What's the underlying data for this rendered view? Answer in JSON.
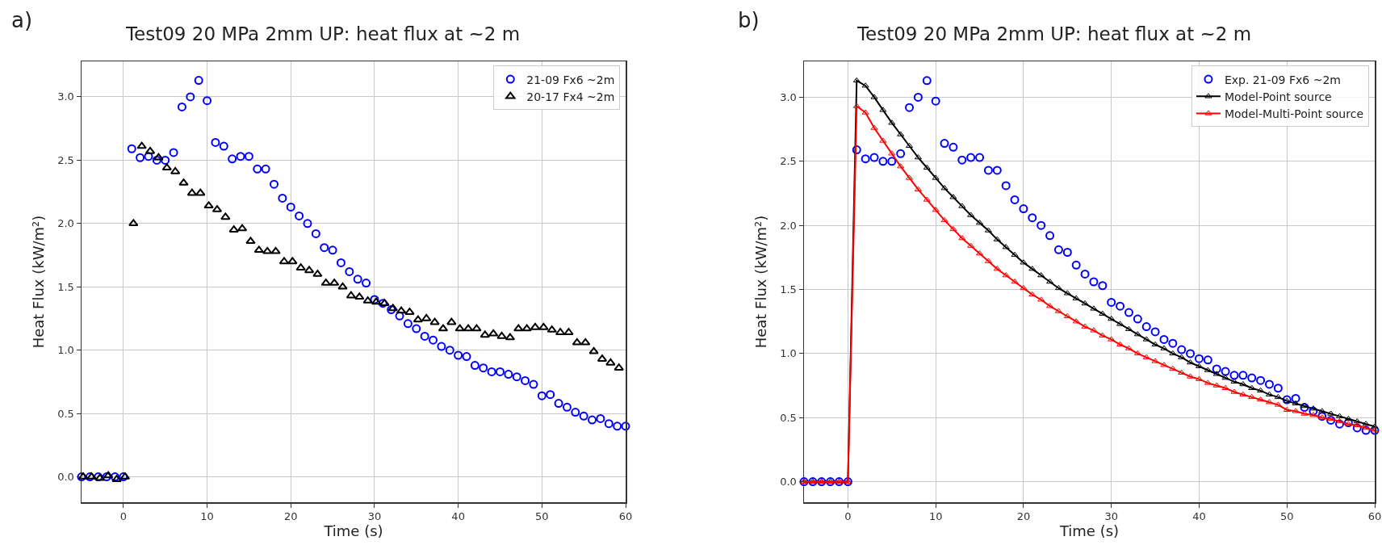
{
  "chart_data": [
    {
      "type": "scatter",
      "title": "Test09 20 MPa 2mm UP: heat flux at ~2 m",
      "xlabel": "Time (s)",
      "ylabel": "Heat Flux (kW/m²)",
      "annotations": [
        "a)"
      ],
      "xlim": [
        -5,
        60
      ],
      "ylim": [
        -0.2,
        3.28
      ],
      "xticks": [
        0,
        10,
        20,
        30,
        40,
        50,
        60
      ],
      "yticks": [
        {
          "value": 0,
          "label": "0.0"
        },
        {
          "value": 0.5,
          "label": "0.5"
        },
        {
          "value": 1,
          "label": "1.0"
        },
        {
          "value": 1.5,
          "label": "1.5"
        },
        {
          "value": 2,
          "label": "2.0"
        },
        {
          "value": 2.5,
          "label": "2.5"
        },
        {
          "value": 3,
          "label": "3.0"
        }
      ],
      "grid": true,
      "legend": "top right",
      "series": [
        {
          "name": "21-09 Fx6 ~2m",
          "type": "scatter",
          "marker": "circle",
          "color": "#0000ff",
          "x": [
            -5,
            -4,
            -3,
            -2,
            -1,
            0,
            1,
            2,
            3,
            4,
            5,
            6,
            7,
            8,
            9,
            10,
            11,
            12,
            13,
            14,
            15,
            16,
            17,
            18,
            19,
            20,
            21,
            22,
            23,
            24,
            25,
            26,
            27,
            28,
            29,
            30,
            31,
            32,
            33,
            34,
            35,
            36,
            37,
            38,
            39,
            40,
            41,
            42,
            43,
            44,
            45,
            46,
            47,
            48,
            49,
            50,
            51,
            52,
            53,
            54,
            55,
            56,
            57,
            58,
            59,
            60
          ],
          "values": [
            0,
            0,
            0,
            0,
            0,
            0,
            2.59,
            2.52,
            2.53,
            2.5,
            2.5,
            2.56,
            2.92,
            3.0,
            3.13,
            2.97,
            2.64,
            2.61,
            2.51,
            2.53,
            2.53,
            2.43,
            2.43,
            2.31,
            2.2,
            2.13,
            2.06,
            2.0,
            1.92,
            1.81,
            1.79,
            1.69,
            1.62,
            1.56,
            1.53,
            1.4,
            1.37,
            1.32,
            1.27,
            1.21,
            1.17,
            1.11,
            1.08,
            1.03,
            1.0,
            0.96,
            0.95,
            0.88,
            0.86,
            0.83,
            0.83,
            0.81,
            0.79,
            0.76,
            0.73,
            0.64,
            0.65,
            0.58,
            0.55,
            0.51,
            0.48,
            0.45,
            0.46,
            0.42,
            0.4,
            0.4
          ]
        },
        {
          "name": "20-17 Fx4 ~2m",
          "type": "scatter",
          "marker": "triangle",
          "color": "#000000",
          "x": [
            -4.8,
            -3.8,
            -2.8,
            -1.8,
            -0.8,
            0.2,
            1.2,
            2.2,
            3.2,
            4.2,
            5.2,
            6.2,
            7.2,
            8.2,
            9.2,
            10.2,
            11.2,
            12.2,
            13.2,
            14.2,
            15.2,
            16.2,
            17.2,
            18.2,
            19.2,
            20.2,
            21.2,
            22.2,
            23.2,
            24.2,
            25.2,
            26.2,
            27.2,
            28.2,
            29.2,
            30.2,
            31.2,
            32.2,
            33.2,
            34.2,
            35.2,
            36.2,
            37.2,
            38.2,
            39.2,
            40.2,
            41.2,
            42.2,
            43.2,
            44.2,
            45.2,
            46.2,
            47.2,
            48.2,
            49.2,
            50.2,
            51.2,
            52.2,
            53.2,
            54.2,
            55.2,
            56.2,
            57.2,
            58.2,
            59.2
          ],
          "values": [
            0,
            0,
            -0.01,
            0.01,
            -0.02,
            0,
            2.0,
            2.61,
            2.57,
            2.52,
            2.44,
            2.41,
            2.32,
            2.24,
            2.24,
            2.14,
            2.11,
            2.05,
            1.95,
            1.96,
            1.86,
            1.79,
            1.78,
            1.78,
            1.7,
            1.7,
            1.65,
            1.63,
            1.6,
            1.53,
            1.53,
            1.5,
            1.43,
            1.42,
            1.39,
            1.38,
            1.37,
            1.33,
            1.31,
            1.3,
            1.24,
            1.25,
            1.22,
            1.17,
            1.22,
            1.17,
            1.17,
            1.17,
            1.12,
            1.13,
            1.11,
            1.1,
            1.17,
            1.17,
            1.18,
            1.18,
            1.16,
            1.14,
            1.14,
            1.06,
            1.06,
            0.99,
            0.93,
            0.9,
            0.86
          ]
        }
      ]
    },
    {
      "type": "scatter",
      "title": "Test09 20 MPa 2mm UP: heat flux at ~2 m",
      "xlabel": "Time (s)",
      "ylabel": "Heat Flux (kW/m²)",
      "annotations": [
        "b)"
      ],
      "xlim": [
        -5,
        60
      ],
      "ylim": [
        -0.16,
        3.28
      ],
      "xticks": [
        0,
        10,
        20,
        30,
        40,
        50,
        60
      ],
      "yticks": [
        {
          "value": 0,
          "label": "0.0"
        },
        {
          "value": 0.5,
          "label": "0.5"
        },
        {
          "value": 1,
          "label": "1.0"
        },
        {
          "value": 1.5,
          "label": "1.5"
        },
        {
          "value": 2,
          "label": "2.0"
        },
        {
          "value": 2.5,
          "label": "2.5"
        },
        {
          "value": 3,
          "label": "3.0"
        }
      ],
      "grid": true,
      "legend": "top right",
      "series": [
        {
          "name": "Exp. 21-09 Fx6 ~2m",
          "type": "scatter",
          "marker": "circle",
          "color": "#0000ff",
          "x": [
            -5,
            -4,
            -3,
            -2,
            -1,
            0,
            1,
            2,
            3,
            4,
            5,
            6,
            7,
            8,
            9,
            10,
            11,
            12,
            13,
            14,
            15,
            16,
            17,
            18,
            19,
            20,
            21,
            22,
            23,
            24,
            25,
            26,
            27,
            28,
            29,
            30,
            31,
            32,
            33,
            34,
            35,
            36,
            37,
            38,
            39,
            40,
            41,
            42,
            43,
            44,
            45,
            46,
            47,
            48,
            49,
            50,
            51,
            52,
            53,
            54,
            55,
            56,
            57,
            58,
            59,
            60
          ],
          "values": [
            0,
            0,
            0,
            0,
            0,
            0,
            2.59,
            2.52,
            2.53,
            2.5,
            2.5,
            2.56,
            2.92,
            3.0,
            3.13,
            2.97,
            2.64,
            2.61,
            2.51,
            2.53,
            2.53,
            2.43,
            2.43,
            2.31,
            2.2,
            2.13,
            2.06,
            2.0,
            1.92,
            1.81,
            1.79,
            1.69,
            1.62,
            1.56,
            1.53,
            1.4,
            1.37,
            1.32,
            1.27,
            1.21,
            1.17,
            1.11,
            1.08,
            1.03,
            1.0,
            0.96,
            0.95,
            0.88,
            0.86,
            0.83,
            0.83,
            0.81,
            0.79,
            0.76,
            0.73,
            0.64,
            0.65,
            0.58,
            0.55,
            0.51,
            0.48,
            0.45,
            0.46,
            0.42,
            0.4,
            0.4
          ]
        },
        {
          "name": "Model-Point source",
          "type": "line",
          "marker": "triangle",
          "line_style": "solid",
          "color": "#000000",
          "x": [
            -5,
            -4,
            -3,
            -2,
            -1,
            0,
            1,
            2,
            3,
            4,
            5,
            6,
            7,
            8,
            9,
            10,
            11,
            12,
            13,
            14,
            15,
            16,
            17,
            18,
            19,
            20,
            21,
            22,
            23,
            24,
            25,
            26,
            27,
            28,
            29,
            30,
            31,
            32,
            33,
            34,
            35,
            36,
            37,
            38,
            39,
            40,
            41,
            42,
            43,
            44,
            45,
            46,
            47,
            48,
            49,
            50,
            51,
            52,
            53,
            54,
            55,
            56,
            57,
            58,
            59,
            60
          ],
          "values": [
            0,
            0,
            0,
            0,
            0,
            0,
            3.13,
            3.09,
            3.0,
            2.9,
            2.8,
            2.71,
            2.62,
            2.53,
            2.45,
            2.37,
            2.29,
            2.22,
            2.15,
            2.08,
            2.02,
            1.96,
            1.89,
            1.83,
            1.77,
            1.71,
            1.66,
            1.61,
            1.56,
            1.51,
            1.47,
            1.43,
            1.39,
            1.35,
            1.31,
            1.27,
            1.23,
            1.19,
            1.15,
            1.11,
            1.07,
            1.04,
            1.0,
            0.97,
            0.93,
            0.9,
            0.87,
            0.84,
            0.81,
            0.78,
            0.76,
            0.73,
            0.71,
            0.68,
            0.66,
            0.63,
            0.61,
            0.59,
            0.57,
            0.55,
            0.53,
            0.51,
            0.49,
            0.47,
            0.45,
            0.43
          ]
        },
        {
          "name": "Model-Multi-Point source",
          "type": "line",
          "marker": "triangle",
          "line_style": "solid",
          "color": "#ff0000",
          "x": [
            -5,
            -4,
            -3,
            -2,
            -1,
            0,
            1,
            2,
            3,
            4,
            5,
            6,
            7,
            8,
            9,
            10,
            11,
            12,
            13,
            14,
            15,
            16,
            17,
            18,
            19,
            20,
            21,
            22,
            23,
            24,
            25,
            26,
            27,
            28,
            29,
            30,
            31,
            32,
            33,
            34,
            35,
            36,
            37,
            38,
            39,
            40,
            41,
            42,
            43,
            44,
            45,
            46,
            47,
            48,
            49,
            50,
            51,
            52,
            53,
            54,
            55,
            56,
            57,
            58,
            59,
            60
          ],
          "values": [
            0,
            0,
            0,
            0,
            0,
            0,
            2.93,
            2.88,
            2.76,
            2.66,
            2.56,
            2.46,
            2.37,
            2.28,
            2.2,
            2.12,
            2.04,
            1.97,
            1.9,
            1.84,
            1.78,
            1.72,
            1.66,
            1.61,
            1.56,
            1.51,
            1.46,
            1.42,
            1.37,
            1.33,
            1.29,
            1.25,
            1.21,
            1.18,
            1.14,
            1.11,
            1.07,
            1.04,
            1.0,
            0.97,
            0.94,
            0.91,
            0.88,
            0.85,
            0.82,
            0.8,
            0.77,
            0.75,
            0.73,
            0.7,
            0.68,
            0.66,
            0.64,
            0.62,
            0.6,
            0.56,
            0.55,
            0.53,
            0.52,
            0.5,
            0.49,
            0.47,
            0.45,
            0.44,
            0.42,
            0.4
          ]
        }
      ]
    }
  ]
}
